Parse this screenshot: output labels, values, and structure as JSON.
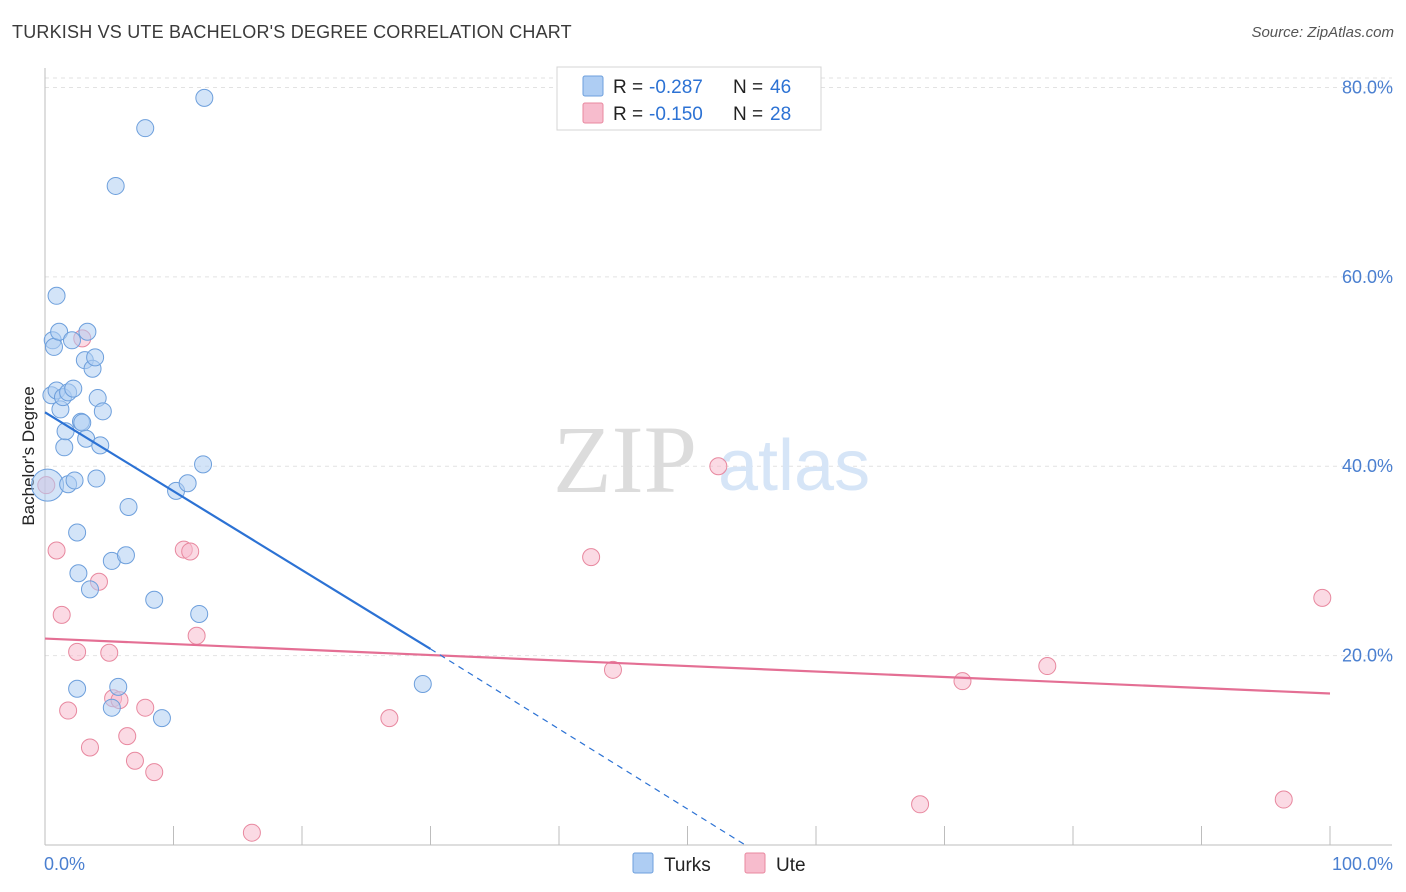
{
  "header": {
    "title": "TURKISH VS UTE BACHELOR'S DEGREE CORRELATION CHART",
    "source": "Source: ZipAtlas.com"
  },
  "watermark": {
    "zip": "ZIP",
    "atlas": "atlas"
  },
  "legend_top": {
    "rows": [
      {
        "r_label": "R = ",
        "r_value": "-0.287",
        "n_label": "N = ",
        "n_value": "46"
      },
      {
        "r_label": "R = ",
        "r_value": "-0.150",
        "n_label": "N = ",
        "n_value": "28"
      }
    ]
  },
  "legend_bottom": {
    "items": [
      "Turks",
      "Ute"
    ]
  },
  "colors": {
    "turks_fill": "#aecdf3",
    "turks_stroke": "#6d9fdc",
    "turks_line": "#2c72d4",
    "ute_fill": "#f7bccd",
    "ute_stroke": "#e8889f",
    "ute_line": "#e46f94",
    "tick": "#4a7fd0",
    "grid": "#e2e2e2"
  },
  "chart_data": {
    "type": "scatter",
    "title": "TURKISH VS UTE BACHELOR'S DEGREE CORRELATION CHART",
    "xlabel": "",
    "ylabel": "Bachelor's Degree",
    "xlim": [
      0,
      100
    ],
    "ylim": [
      0,
      81
    ],
    "y_ticks": [
      20,
      40,
      60,
      80
    ],
    "y_tick_labels": [
      "20.0%",
      "40.0%",
      "60.0%",
      "80.0%"
    ],
    "x_tick_labels": [
      "0.0%",
      "100.0%"
    ],
    "grid": true,
    "legend_position": "top-center",
    "series": [
      {
        "name": "Turks",
        "r": -0.287,
        "n": 46,
        "trend": {
          "x": [
            0,
            30
          ],
          "y": [
            45.7,
            20.7
          ]
        },
        "trend_extension": {
          "x": [
            30,
            54.5
          ],
          "y": [
            20.7,
            0
          ]
        },
        "points": [
          {
            "x": 0.2,
            "y": 38.0,
            "big": true
          },
          {
            "x": 0.5,
            "y": 47.5
          },
          {
            "x": 0.6,
            "y": 53.3
          },
          {
            "x": 0.7,
            "y": 52.6
          },
          {
            "x": 0.9,
            "y": 48.0
          },
          {
            "x": 0.9,
            "y": 58.0
          },
          {
            "x": 1.1,
            "y": 54.2
          },
          {
            "x": 1.2,
            "y": 46.0
          },
          {
            "x": 1.4,
            "y": 47.3
          },
          {
            "x": 1.5,
            "y": 42.0
          },
          {
            "x": 1.6,
            "y": 43.7
          },
          {
            "x": 1.8,
            "y": 47.8
          },
          {
            "x": 1.8,
            "y": 38.1
          },
          {
            "x": 2.1,
            "y": 53.3
          },
          {
            "x": 2.2,
            "y": 48.2
          },
          {
            "x": 2.3,
            "y": 38.5
          },
          {
            "x": 2.5,
            "y": 33.0
          },
          {
            "x": 2.6,
            "y": 28.7
          },
          {
            "x": 2.8,
            "y": 44.7
          },
          {
            "x": 2.9,
            "y": 44.6
          },
          {
            "x": 3.1,
            "y": 51.2
          },
          {
            "x": 3.2,
            "y": 42.9
          },
          {
            "x": 3.3,
            "y": 54.2
          },
          {
            "x": 3.5,
            "y": 27.0
          },
          {
            "x": 3.7,
            "y": 50.3
          },
          {
            "x": 3.9,
            "y": 51.5
          },
          {
            "x": 4.0,
            "y": 38.7
          },
          {
            "x": 4.1,
            "y": 47.2
          },
          {
            "x": 4.3,
            "y": 42.2
          },
          {
            "x": 4.5,
            "y": 45.8
          },
          {
            "x": 5.2,
            "y": 30.0
          },
          {
            "x": 5.2,
            "y": 14.5
          },
          {
            "x": 5.5,
            "y": 69.6
          },
          {
            "x": 5.7,
            "y": 16.7
          },
          {
            "x": 6.3,
            "y": 30.6
          },
          {
            "x": 6.5,
            "y": 35.7
          },
          {
            "x": 7.8,
            "y": 75.7
          },
          {
            "x": 8.5,
            "y": 25.9
          },
          {
            "x": 9.1,
            "y": 13.4
          },
          {
            "x": 2.5,
            "y": 16.5
          },
          {
            "x": 10.2,
            "y": 37.4
          },
          {
            "x": 11.1,
            "y": 38.2
          },
          {
            "x": 12.0,
            "y": 24.4
          },
          {
            "x": 12.3,
            "y": 40.2
          },
          {
            "x": 12.4,
            "y": 78.9
          },
          {
            "x": 29.4,
            "y": 17.0
          }
        ]
      },
      {
        "name": "Ute",
        "r": -0.15,
        "n": 28,
        "trend": {
          "x": [
            0,
            100
          ],
          "y": [
            21.8,
            16.0
          ]
        },
        "points": [
          {
            "x": 0.1,
            "y": 38.0
          },
          {
            "x": 0.9,
            "y": 31.1
          },
          {
            "x": 1.3,
            "y": 24.3
          },
          {
            "x": 1.8,
            "y": 14.2
          },
          {
            "x": 2.5,
            "y": 20.4
          },
          {
            "x": 2.9,
            "y": 53.5
          },
          {
            "x": 3.5,
            "y": 10.3
          },
          {
            "x": 4.2,
            "y": 27.8
          },
          {
            "x": 5.0,
            "y": 20.3
          },
          {
            "x": 5.3,
            "y": 15.5
          },
          {
            "x": 5.8,
            "y": 15.3
          },
          {
            "x": 6.4,
            "y": 11.5
          },
          {
            "x": 7.0,
            "y": 8.9
          },
          {
            "x": 7.8,
            "y": 14.5
          },
          {
            "x": 8.5,
            "y": 7.7
          },
          {
            "x": 10.8,
            "y": 31.2
          },
          {
            "x": 11.3,
            "y": 31.0
          },
          {
            "x": 11.8,
            "y": 22.1
          },
          {
            "x": 16.1,
            "y": 1.3
          },
          {
            "x": 26.8,
            "y": 13.4
          },
          {
            "x": 42.5,
            "y": 30.4
          },
          {
            "x": 44.2,
            "y": 18.5
          },
          {
            "x": 52.4,
            "y": 40.0
          },
          {
            "x": 68.1,
            "y": 4.3
          },
          {
            "x": 71.4,
            "y": 17.3
          },
          {
            "x": 78.0,
            "y": 18.9
          },
          {
            "x": 96.4,
            "y": 4.8
          },
          {
            "x": 99.4,
            "y": 26.1
          }
        ]
      }
    ]
  }
}
